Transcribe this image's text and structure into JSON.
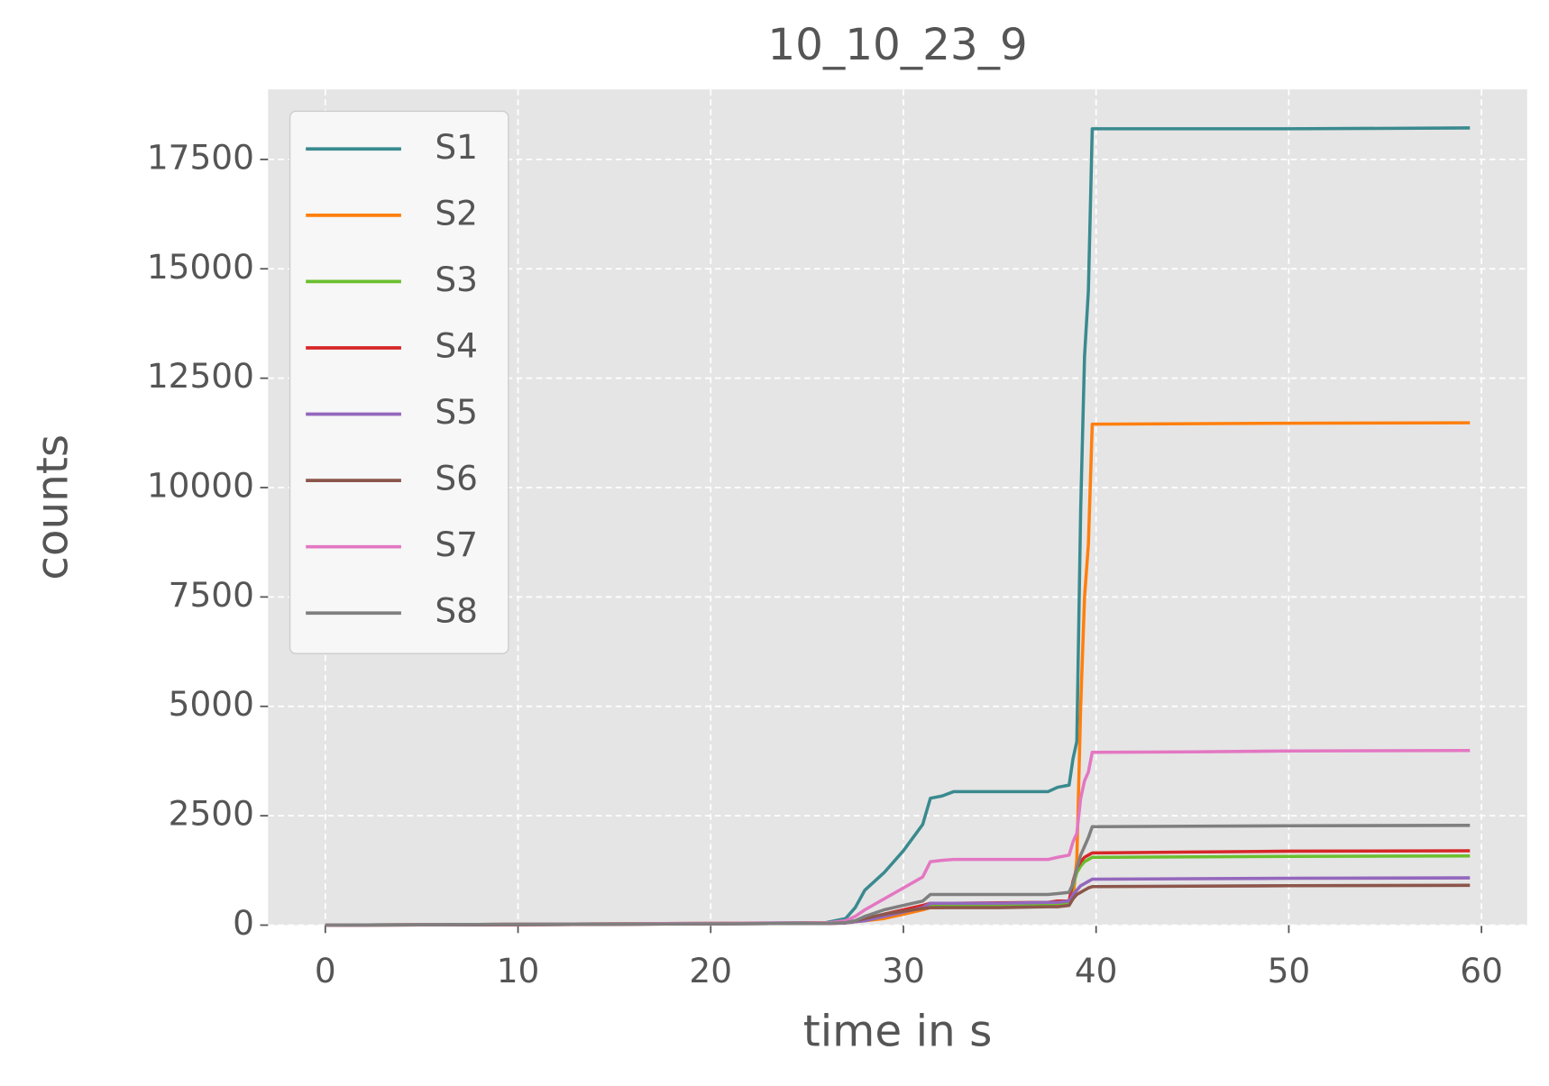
{
  "chart_data": {
    "type": "line",
    "title": "10_10_23_9",
    "x_label": "time in s",
    "y_label": "counts",
    "x": [
      0,
      10,
      20,
      26,
      27,
      27.5,
      28,
      29,
      30,
      31,
      31.4,
      32,
      32.6,
      35,
      37.5,
      38,
      38.6,
      38.8,
      39,
      39.2,
      39.4,
      39.6,
      39.8,
      40,
      45,
      50,
      59.4
    ],
    "series": [
      {
        "name": "S1",
        "color": "#3a8a8f",
        "values": [
          0,
          20,
          40,
          60,
          150,
          400,
          800,
          1200,
          1700,
          2300,
          2900,
          2950,
          3050,
          3050,
          3050,
          3150,
          3200,
          3800,
          4200,
          9500,
          13000,
          14500,
          18200,
          18200,
          18200,
          18200,
          18220
        ]
      },
      {
        "name": "S2",
        "color": "#ff7f0e",
        "values": [
          0,
          20,
          40,
          50,
          60,
          80,
          100,
          150,
          250,
          350,
          400,
          400,
          420,
          420,
          430,
          450,
          500,
          600,
          1500,
          5000,
          7500,
          8700,
          11450,
          11450,
          11460,
          11470,
          11480
        ]
      },
      {
        "name": "S3",
        "color": "#6abf2e",
        "values": [
          0,
          10,
          30,
          40,
          50,
          80,
          100,
          200,
          300,
          400,
          450,
          450,
          450,
          460,
          470,
          500,
          500,
          900,
          1200,
          1350,
          1450,
          1500,
          1550,
          1550,
          1560,
          1570,
          1580
        ]
      },
      {
        "name": "S4",
        "color": "#d62728",
        "values": [
          0,
          10,
          30,
          40,
          50,
          80,
          120,
          250,
          350,
          450,
          500,
          500,
          500,
          510,
          520,
          550,
          550,
          1000,
          1300,
          1450,
          1550,
          1600,
          1650,
          1650,
          1670,
          1690,
          1700
        ]
      },
      {
        "name": "S5",
        "color": "#9467bd",
        "values": [
          0,
          10,
          30,
          40,
          50,
          80,
          100,
          200,
          300,
          400,
          500,
          500,
          500,
          500,
          520,
          520,
          550,
          700,
          800,
          900,
          950,
          1000,
          1050,
          1050,
          1060,
          1070,
          1080
        ]
      },
      {
        "name": "S6",
        "color": "#8c564b",
        "values": [
          0,
          10,
          30,
          40,
          60,
          100,
          150,
          250,
          320,
          380,
          400,
          400,
          400,
          400,
          420,
          420,
          450,
          600,
          700,
          750,
          800,
          850,
          880,
          880,
          890,
          900,
          910
        ]
      },
      {
        "name": "S7",
        "color": "#e377c2",
        "values": [
          0,
          20,
          40,
          50,
          100,
          200,
          350,
          600,
          850,
          1100,
          1450,
          1480,
          1500,
          1500,
          1500,
          1550,
          1600,
          1900,
          2100,
          2900,
          3300,
          3500,
          3950,
          3950,
          3960,
          3980,
          3990
        ]
      },
      {
        "name": "S8",
        "color": "#7f7f7f",
        "values": [
          0,
          20,
          30,
          40,
          60,
          100,
          200,
          350,
          450,
          550,
          700,
          700,
          700,
          700,
          700,
          720,
          750,
          950,
          1300,
          1600,
          1800,
          2000,
          2250,
          2250,
          2260,
          2270,
          2280
        ]
      }
    ],
    "xlim": [
      -2.97,
      62.37
    ],
    "xticks": [
      0,
      10,
      20,
      30,
      40,
      50,
      60
    ],
    "ylim": [
      0,
      19100
    ],
    "yticks": [
      0,
      2500,
      5000,
      7500,
      10000,
      12500,
      15000,
      17500
    ],
    "grid": true,
    "legend": "upper left"
  }
}
